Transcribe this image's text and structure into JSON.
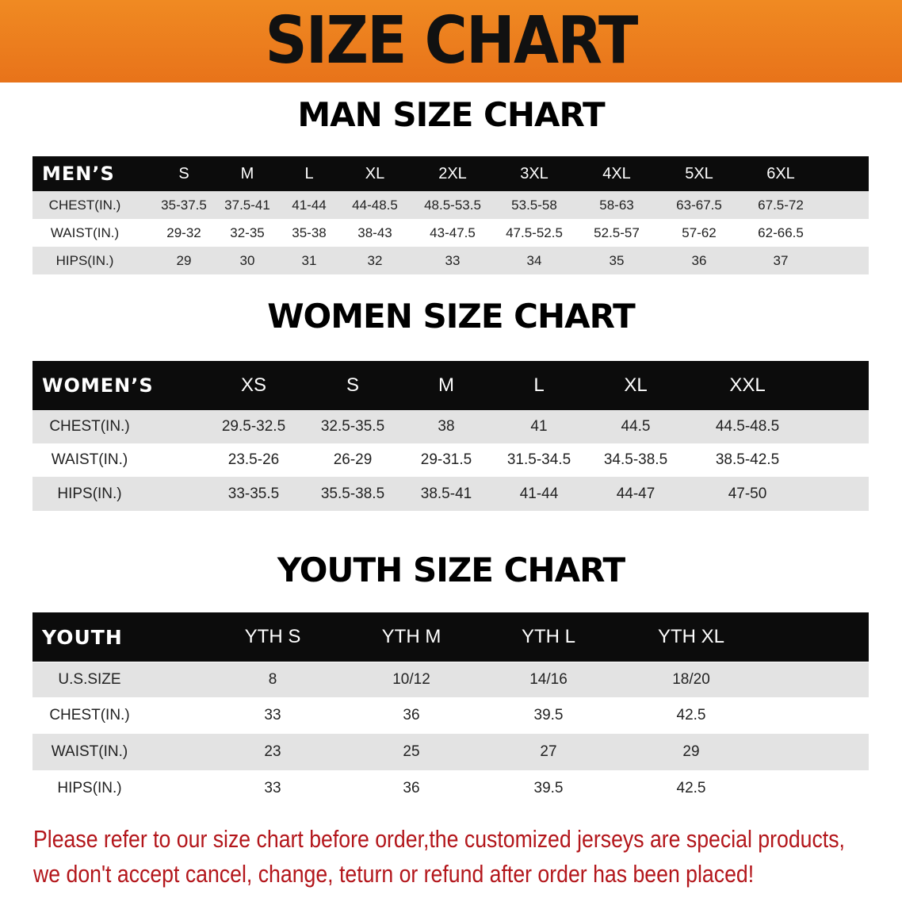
{
  "banner_title": "SIZE CHART",
  "men": {
    "title": "MAN SIZE CHART",
    "corner": "MEN’S",
    "sizes": [
      "S",
      "M",
      "L",
      "XL",
      "2XL",
      "3XL",
      "4XL",
      "5XL",
      "6XL"
    ],
    "rows": [
      {
        "label": "CHEST(IN.)",
        "values": [
          "35-37.5",
          "37.5-41",
          "41-44",
          "44-48.5",
          "48.5-53.5",
          "53.5-58",
          "58-63",
          "63-67.5",
          "67.5-72"
        ]
      },
      {
        "label": "WAIST(IN.)",
        "values": [
          "29-32",
          "32-35",
          "35-38",
          "38-43",
          "43-47.5",
          "47.5-52.5",
          "52.5-57",
          "57-62",
          "62-66.5"
        ]
      },
      {
        "label": "HIPS(IN.)",
        "values": [
          "29",
          "30",
          "31",
          "32",
          "33",
          "34",
          "35",
          "36",
          "37"
        ]
      }
    ]
  },
  "women": {
    "title": "WOMEN SIZE CHART",
    "corner": "WOMEN’S",
    "sizes": [
      "XS",
      "S",
      "M",
      "L",
      "XL",
      "XXL"
    ],
    "rows": [
      {
        "label": "CHEST(IN.)",
        "values": [
          "29.5-32.5",
          "32.5-35.5",
          "38",
          "41",
          "44.5",
          "44.5-48.5"
        ]
      },
      {
        "label": "WAIST(IN.)",
        "values": [
          "23.5-26",
          "26-29",
          "29-31.5",
          "31.5-34.5",
          "34.5-38.5",
          "38.5-42.5"
        ]
      },
      {
        "label": "HIPS(IN.)",
        "values": [
          "33-35.5",
          "35.5-38.5",
          "38.5-41",
          "41-44",
          "44-47",
          "47-50"
        ]
      }
    ]
  },
  "youth": {
    "title": "YOUTH SIZE CHART",
    "corner": "YOUTH",
    "sizes": [
      "YTH S",
      "YTH M",
      "YTH L",
      "YTH XL"
    ],
    "rows": [
      {
        "label": "U.S.SIZE",
        "values": [
          "8",
          "10/12",
          "14/16",
          "18/20"
        ]
      },
      {
        "label": "CHEST(IN.)",
        "values": [
          "33",
          "36",
          "39.5",
          "42.5"
        ]
      },
      {
        "label": "WAIST(IN.)",
        "values": [
          "23",
          "25",
          "27",
          "29"
        ]
      },
      {
        "label": "HIPS(IN.)",
        "values": [
          "33",
          "36",
          "39.5",
          "42.5"
        ]
      }
    ]
  },
  "note": {
    "line1": "Please refer to our size chart before order,the customized jerseys are special products,",
    "line2": "we don't accept cancel, change, teturn or refund after order has been placed!"
  },
  "colors": {
    "banner": "#ec7e1e",
    "header_row": "#0c0c0c",
    "stripe": "#e3e3e3",
    "note": "#b3161b"
  }
}
